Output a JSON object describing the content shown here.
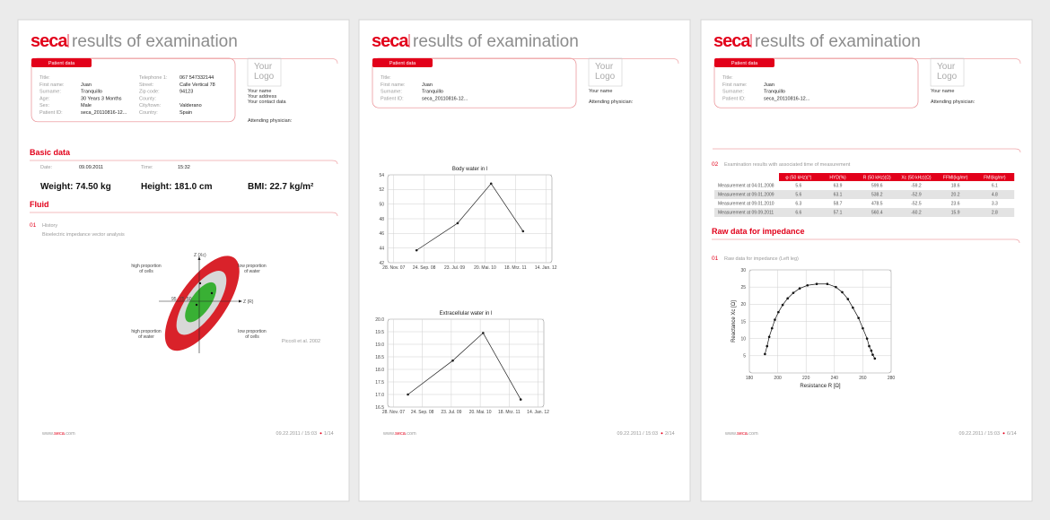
{
  "pages": [
    {
      "brand": "seca",
      "title": "results of examination",
      "patient": {
        "tab": "Patient data",
        "left": [
          {
            "label": "Title:"
          },
          {
            "label": "First name:",
            "value": "Juan"
          },
          {
            "label": "Surname:",
            "value": "Tranquillo"
          },
          {
            "label": "Age:",
            "value": "30 Years 3 Months"
          },
          {
            "label": "Sex:",
            "value": "Male"
          },
          {
            "label": "Patient ID:",
            "value": "seca_20110816-12..."
          }
        ],
        "right": [
          {
            "label": "Telephone 1:",
            "value": "067 547332144"
          },
          {
            "label": "Street:",
            "value": "Calle Vertical 78"
          },
          {
            "label": "Zip code:",
            "value": "94123"
          },
          {
            "label": "County:"
          },
          {
            "label": "City/town:",
            "value": "Valderano"
          },
          {
            "label": "Country:",
            "value": "Spain"
          }
        ]
      },
      "practice": {
        "logo": [
          "Your",
          "Logo"
        ],
        "lines": [
          "Your name",
          "Your address",
          "Your contact data"
        ],
        "physician": "Attending physician:"
      },
      "basic": {
        "heading": "Basic data",
        "date": {
          "label": "Date:",
          "value": "09.09.2011"
        },
        "time": {
          "label": "Time:",
          "value": "15:32"
        },
        "measures": [
          "Weight: 74.50 kg",
          "Height: 181.0 cm",
          "BMI: 22.7 kg/m²"
        ]
      },
      "fluid": {
        "heading": "Fluid",
        "number": "01",
        "subheading": "History",
        "caption": "Bioelectric impedance vector analysis",
        "biva": {
          "y_axis": "Z (Xc)",
          "x_axis": "Z (R)",
          "tolerances": [
            "95",
            "75",
            "50"
          ],
          "quadrants": [
            [
              "high proportion",
              "of cells"
            ],
            [
              "low proportion",
              "of water"
            ],
            [
              "high proportion",
              "of water"
            ],
            [
              "low proportion",
              "of cells"
            ]
          ],
          "source": "Piccoli et al. 2002"
        }
      },
      "footer": {
        "url": [
          "www.",
          "seca",
          ".com"
        ],
        "stamp": "09.22.2011 / 15:03",
        "page": "1/14"
      }
    },
    {
      "brand": "seca",
      "title": "results of examination",
      "patient": {
        "tab": "Patient data",
        "left": [
          {
            "label": "Title:"
          },
          {
            "label": "First name:",
            "value": "Juan"
          },
          {
            "label": "Surname:",
            "value": "Tranquillo"
          },
          {
            "label": "Patient ID:",
            "value": "seca_20110816-12..."
          }
        ]
      },
      "practice": {
        "logo": [
          "Your",
          "Logo"
        ],
        "lines": [
          "Your name"
        ],
        "physician": "Attending physician:"
      },
      "footer": {
        "url": [
          "www.",
          "seca",
          ".com"
        ],
        "stamp": "09.22.2011 / 15:03",
        "page": "2/14"
      }
    },
    {
      "brand": "seca",
      "title": "results of examination",
      "patient": {
        "tab": "Patient data",
        "left": [
          {
            "label": "Title:"
          },
          {
            "label": "First name:",
            "value": "Juan"
          },
          {
            "label": "Surname:",
            "value": "Tranquillo"
          },
          {
            "label": "Patient ID:",
            "value": "seca_20110816-12..."
          }
        ]
      },
      "practice": {
        "logo": [
          "Your",
          "Logo"
        ],
        "lines": [
          "Your name"
        ],
        "physician": "Attending physician:"
      },
      "results": {
        "number": "02",
        "caption": "Examination results with associated time of measurement",
        "columns": [
          "φ (50 kHz)(°)",
          "HYD(%)",
          "R (50 kHz)(Ω)",
          "Xc (50 kHz)(Ω)",
          "FFMI(kg/m²)",
          "FMI(kg/m²)"
        ],
        "rows": [
          {
            "label": "Measurement at 04.01.2008",
            "cells": [
              "5.6",
              "63.9",
              "599.6",
              "-59.2",
              "18.6",
              "6.1"
            ]
          },
          {
            "label": "Measurement at 09.01.2009",
            "cells": [
              "5.6",
              "63.1",
              "538.2",
              "-52.9",
              "20.2",
              "4.8"
            ]
          },
          {
            "label": "Measurement at 09.01.2010",
            "cells": [
              "6.3",
              "58.7",
              "478.5",
              "-52.5",
              "23.6",
              "3.3"
            ]
          },
          {
            "label": "Measurement at 09.09.2011",
            "cells": [
              "6.6",
              "57.1",
              "560.4",
              "-60.2",
              "15.9",
              "2.8"
            ]
          }
        ]
      },
      "raw": {
        "heading": "Raw data for impedance",
        "number": "01",
        "caption": "Raw data for impedance (Left leg)"
      },
      "footer": {
        "url": [
          "www.",
          "seca",
          ".com"
        ],
        "stamp": "09.22.2011 / 15:03",
        "page": "6/14"
      }
    }
  ],
  "chart_data": [
    {
      "type": "line",
      "title": "Body water in l",
      "color": "#222222",
      "x": [
        0.75,
        2.1,
        3.2,
        4.25
      ],
      "values": [
        43.7,
        47.4,
        52.8,
        46.3
      ],
      "xlim": [
        -0.2,
        5.2
      ],
      "xticks": [
        {
          "value": 0,
          "label": "28. Nov. 07"
        },
        {
          "value": 1,
          "label": "24. Sep. 08"
        },
        {
          "value": 2,
          "label": "23. Jul. 09"
        },
        {
          "value": 3,
          "label": "20. Mai. 10"
        },
        {
          "value": 4,
          "label": "18. Mrz. 11"
        },
        {
          "value": 5,
          "label": "14. Jan. 12"
        }
      ],
      "ylim": [
        42,
        54
      ],
      "yticks": [
        42,
        44,
        46,
        48,
        50,
        52,
        54
      ],
      "grid": true
    },
    {
      "type": "line",
      "title": "Extracellular water in l",
      "color": "#222222",
      "x": [
        0.5,
        2.05,
        3.1,
        4.4
      ],
      "values": [
        17.0,
        18.35,
        19.45,
        16.8
      ],
      "xlim": [
        -0.2,
        5.2
      ],
      "xticks": [
        {
          "value": 0,
          "label": "28. Nov. 07"
        },
        {
          "value": 1,
          "label": "24. Sep. 08"
        },
        {
          "value": 2,
          "label": "23. Jul. 09"
        },
        {
          "value": 3,
          "label": "20. Mai. 10"
        },
        {
          "value": 4,
          "label": "18. Mrz. 11"
        },
        {
          "value": 5,
          "label": "14. Jan. 12"
        }
      ],
      "ylim": [
        16.5,
        20
      ],
      "yticks": [
        16.5,
        {
          "value": 17,
          "label": "17.0"
        },
        17.5,
        {
          "value": 18,
          "label": "18.0"
        },
        18.5,
        {
          "value": 19,
          "label": "19.0"
        },
        19.5,
        {
          "value": 20,
          "label": "20.0"
        }
      ],
      "grid": true
    },
    {
      "type": "scatter",
      "xlabel": "Resistance R [Ω]",
      "ylabel": "Reactance Xc [Ω]",
      "color": "#111111",
      "connected": true,
      "x": [
        191,
        192.5,
        194,
        196,
        198,
        200.5,
        203.5,
        207,
        211,
        215.5,
        221,
        227.5,
        235,
        241,
        245.5,
        249.5,
        253,
        257,
        260,
        263,
        264.5,
        266,
        267,
        268.5
      ],
      "values": [
        5.5,
        7.8,
        10.5,
        13,
        15.5,
        17.7,
        19.8,
        21.7,
        23.3,
        24.6,
        25.5,
        25.9,
        25.9,
        25,
        23.5,
        21.5,
        19,
        16,
        13,
        10,
        7.8,
        6.5,
        5.3,
        4.2
      ],
      "xlim": [
        180,
        280
      ],
      "xticks": [
        180,
        200,
        220,
        240,
        260,
        280
      ],
      "ylim": [
        0,
        30
      ],
      "yticks": [
        5,
        10,
        15,
        20,
        25,
        30
      ],
      "grid": true
    }
  ]
}
